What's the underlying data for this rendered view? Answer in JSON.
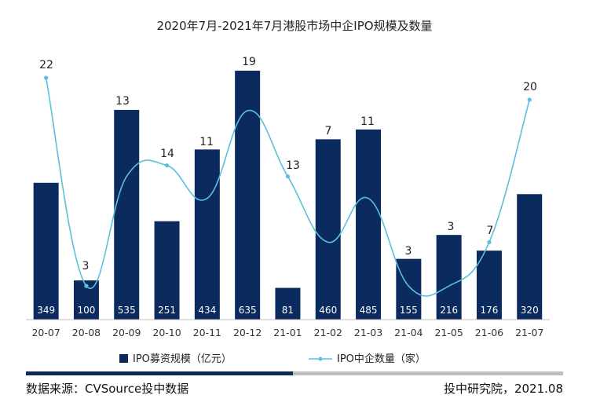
{
  "chart_data": {
    "type": "bar",
    "title": "2020年7月-2021年7月港股市场中企IPO规模及数量",
    "categories": [
      "20-07",
      "20-08",
      "20-09",
      "20-10",
      "20-11",
      "20-12",
      "21-01",
      "21-02",
      "21-03",
      "21-04",
      "21-05",
      "21-06",
      "21-07"
    ],
    "series": [
      {
        "name": "IPO募资规模（亿元）",
        "type": "bar",
        "axis": "left",
        "values": [
          349,
          100,
          535,
          251,
          434,
          635,
          81,
          460,
          485,
          155,
          216,
          176,
          320
        ]
      },
      {
        "name": "IPO中企数量（家）",
        "type": "line",
        "axis": "right",
        "smooth": true,
        "values": [
          22,
          3,
          13,
          14,
          11,
          19,
          13,
          7,
          11,
          3,
          3,
          7,
          20
        ]
      }
    ],
    "ylim_left": [
      0,
      680
    ],
    "ylim_right": [
      0,
      25
    ],
    "grid": false,
    "legend_position": "bottom"
  },
  "colors": {
    "bar": "#0b2a5e",
    "line": "#5bc0de",
    "axis": "#bfbfbf",
    "footer_dark": "#0b2a5e",
    "footer_light": "#bfbfbf"
  },
  "footer": {
    "source": "数据来源：CVSource投中数据",
    "publisher": "投中研究院，2021.08"
  }
}
